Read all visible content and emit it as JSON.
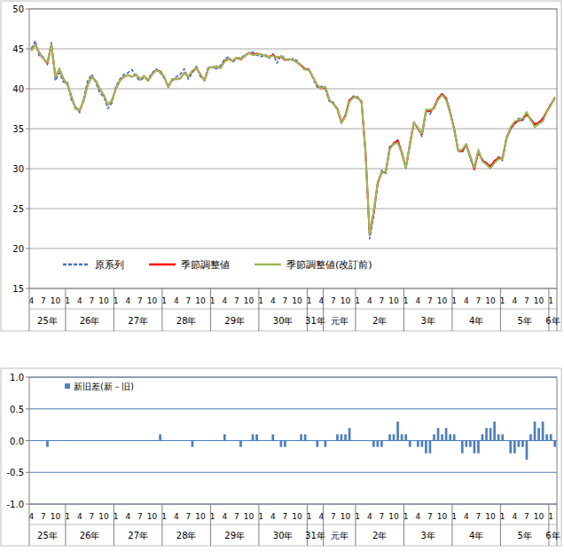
{
  "chart_data": [
    {
      "type": "line",
      "categories": [
        "4",
        null,
        null,
        "7",
        null,
        null,
        "10",
        null,
        null,
        "1",
        null,
        null,
        "4",
        null,
        null,
        "7",
        null,
        null,
        "10",
        null,
        null,
        "1",
        null,
        null,
        "4",
        null,
        null,
        "7",
        null,
        null,
        "10",
        null,
        null,
        "1",
        null,
        null,
        "4",
        null,
        null,
        "7",
        null,
        null,
        "10",
        null,
        null,
        "1",
        null,
        null,
        "4",
        null,
        null,
        "7",
        null,
        null,
        "10",
        null,
        null,
        "1",
        null,
        null,
        "4",
        null,
        null,
        "7",
        null,
        null,
        "10",
        null,
        null,
        "1",
        null,
        null,
        "4",
        null,
        null,
        "7",
        null,
        null,
        "10",
        null,
        null,
        "1",
        null,
        null,
        "4",
        null,
        null,
        "7",
        null,
        null,
        "10",
        null,
        null,
        "1",
        null,
        null,
        "4",
        null,
        null,
        "7",
        null,
        null,
        "10",
        null,
        null,
        "1",
        null,
        null,
        "4",
        null,
        null,
        "7",
        null,
        null,
        "10",
        null,
        null,
        "1",
        null,
        null,
        "4",
        null,
        null,
        "7",
        null,
        null,
        "10",
        null,
        null,
        "1",
        null
      ],
      "x_groups": [
        {
          "label": "25年",
          "span": 9
        },
        {
          "label": "26年",
          "span": 12
        },
        {
          "label": "27年",
          "span": 12
        },
        {
          "label": "28年",
          "span": 12
        },
        {
          "label": "29年",
          "span": 12
        },
        {
          "label": "30年",
          "span": 12
        },
        {
          "label": "31年",
          "span": 4
        },
        {
          "label": "元年",
          "span": 8
        },
        {
          "label": "2年",
          "span": 12
        },
        {
          "label": "3年",
          "span": 12
        },
        {
          "label": "4年",
          "span": 12
        },
        {
          "label": "5年",
          "span": 12
        },
        {
          "label": "6年",
          "span": 2
        }
      ],
      "series": [
        {
          "name": "原系列",
          "color": "#4472c4",
          "line_style": "dashed",
          "values": [
            45.0,
            46.0,
            44.0,
            44.0,
            43.0,
            45.8,
            41.0,
            42.0,
            40.8,
            40.8,
            38.5,
            37.8,
            37.0,
            38.8,
            41.0,
            41.8,
            40.8,
            39.5,
            39.0,
            37.5,
            38.2,
            40.3,
            41.2,
            41.8,
            42.0,
            42.4,
            41.5,
            41.0,
            41.4,
            41.2,
            42.0,
            42.5,
            42.0,
            41.3,
            40.4,
            41.0,
            41.5,
            41.8,
            42.5,
            41.2,
            42.0,
            42.8,
            41.5,
            41.2,
            42.8,
            42.6,
            42.5,
            42.9,
            43.7,
            44.0,
            43.3,
            43.8,
            43.9,
            44.2,
            44.4,
            44.6,
            44.2,
            44.0,
            44.3,
            43.8,
            44.4,
            43.2,
            44.2,
            43.8,
            43.5,
            43.8,
            43.5,
            42.8,
            42.3,
            42.5,
            41.2,
            40.2,
            40.3,
            40.0,
            38.4,
            38.3,
            37.3,
            35.6,
            36.8,
            38.5,
            39.1,
            38.8,
            38.5,
            31.8,
            21.2,
            24.0,
            28.0,
            29.8,
            29.4,
            32.8,
            33.0,
            33.6,
            31.8,
            30.0,
            33.2,
            35.6,
            35.2,
            34.0,
            37.5,
            36.8,
            37.8,
            38.6,
            39.5,
            38.6,
            37.2,
            34.8,
            32.4,
            32.0,
            33.2,
            31.2,
            30.1,
            32.0,
            31.2,
            30.5,
            30.4,
            30.8,
            31.5,
            31.0,
            34.0,
            35.2,
            35.5,
            36.3,
            36.0,
            37.0,
            36.0,
            35.7,
            35.6,
            36.4,
            37.0,
            38.2,
            38.7
          ]
        },
        {
          "name": "季節調整値",
          "color": "#ff0000",
          "line_style": "solid",
          "values": [
            44.8,
            45.5,
            44.5,
            43.8,
            43.2,
            45.5,
            41.5,
            42.5,
            41.2,
            40.5,
            39.0,
            37.5,
            37.3,
            38.5,
            40.5,
            41.5,
            41.0,
            40.0,
            39.2,
            38.0,
            38.5,
            40.0,
            41.0,
            41.5,
            41.7,
            41.5,
            41.8,
            41.2,
            41.6,
            41.0,
            41.8,
            42.3,
            42.2,
            41.5,
            40.2,
            41.2,
            41.2,
            41.3,
            42.0,
            41.5,
            42.2,
            42.6,
            41.8,
            41.0,
            42.6,
            42.7,
            42.8,
            42.6,
            43.5,
            43.7,
            43.5,
            43.9,
            43.7,
            44.1,
            44.5,
            44.3,
            44.4,
            44.3,
            44.1,
            44.0,
            44.2,
            43.9,
            44.0,
            43.6,
            43.7,
            43.6,
            43.3,
            42.9,
            42.5,
            42.3,
            41.4,
            40.4,
            40.0,
            40.2,
            38.6,
            38.1,
            37.5,
            35.8,
            36.6,
            38.6,
            38.9,
            39.0,
            38.3,
            32.0,
            21.8,
            24.5,
            28.2,
            29.5,
            29.6,
            32.5,
            33.2,
            33.5,
            32.0,
            30.1,
            33.0,
            35.8,
            35.0,
            34.3,
            37.2,
            37.2,
            37.6,
            38.8,
            39.3,
            38.8,
            37.0,
            35.0,
            32.2,
            32.2,
            33.0,
            31.5,
            29.9,
            32.2,
            31.0,
            30.7,
            30.2,
            31.0,
            31.3,
            31.3,
            33.8,
            35.0,
            35.7,
            36.0,
            36.2,
            36.8,
            36.2,
            35.5,
            35.8,
            36.2,
            37.2,
            38.0,
            38.9
          ]
        },
        {
          "name": "季節調整値(改訂前)",
          "color": "#9bbb59",
          "line_style": "solid",
          "values": [
            44.8,
            45.5,
            44.5,
            43.8,
            43.3,
            45.5,
            41.5,
            42.5,
            41.2,
            40.5,
            39.0,
            37.5,
            37.3,
            38.5,
            40.5,
            41.5,
            41.0,
            40.0,
            39.2,
            38.0,
            38.5,
            40.0,
            41.0,
            41.5,
            41.7,
            41.5,
            41.8,
            41.2,
            41.6,
            41.0,
            41.8,
            42.3,
            42.1,
            41.5,
            40.2,
            41.2,
            41.2,
            41.3,
            42.0,
            41.5,
            42.3,
            42.6,
            41.8,
            41.0,
            42.6,
            42.7,
            42.8,
            42.6,
            43.4,
            43.7,
            43.5,
            43.9,
            43.8,
            44.1,
            44.5,
            44.2,
            44.3,
            44.3,
            44.1,
            44.0,
            44.1,
            43.9,
            44.1,
            43.7,
            43.7,
            43.6,
            43.3,
            42.8,
            42.4,
            42.3,
            41.4,
            40.5,
            40.0,
            40.3,
            38.6,
            38.1,
            37.4,
            35.7,
            36.5,
            38.4,
            38.9,
            39.0,
            38.3,
            32.0,
            21.8,
            24.6,
            28.3,
            29.6,
            29.6,
            32.4,
            33.1,
            33.2,
            31.9,
            30.0,
            33.1,
            35.8,
            35.1,
            34.4,
            37.4,
            37.4,
            37.5,
            38.6,
            39.2,
            38.6,
            36.9,
            34.9,
            32.2,
            32.4,
            33.1,
            31.6,
            30.1,
            32.4,
            30.9,
            30.5,
            30.0,
            30.7,
            31.2,
            31.2,
            33.8,
            35.2,
            35.9,
            36.1,
            36.3,
            37.1,
            36.1,
            35.2,
            35.6,
            35.9,
            37.1,
            37.9,
            39.0
          ]
        }
      ],
      "ylim": [
        15,
        50
      ],
      "yticks": [
        15,
        20,
        25,
        30,
        35,
        40,
        45,
        50
      ],
      "grid": true,
      "legend": "lower left"
    },
    {
      "type": "bar",
      "categories": [
        "4",
        null,
        null,
        "7",
        null,
        null,
        "10",
        null,
        null,
        "1",
        null,
        null,
        "4",
        null,
        null,
        "7",
        null,
        null,
        "10",
        null,
        null,
        "1",
        null,
        null,
        "4",
        null,
        null,
        "7",
        null,
        null,
        "10",
        null,
        null,
        "1",
        null,
        null,
        "4",
        null,
        null,
        "7",
        null,
        null,
        "10",
        null,
        null,
        "1",
        null,
        null,
        "4",
        null,
        null,
        "7",
        null,
        null,
        "10",
        null,
        null,
        "1",
        null,
        null,
        "4",
        null,
        null,
        "7",
        null,
        null,
        "10",
        null,
        null,
        "1",
        null,
        null,
        "4",
        null,
        null,
        "7",
        null,
        null,
        "10",
        null,
        null,
        "1",
        null,
        null,
        "4",
        null,
        null,
        "7",
        null,
        null,
        "10",
        null,
        null,
        "1",
        null,
        null,
        "4",
        null,
        null,
        "7",
        null,
        null,
        "10",
        null,
        null,
        "1",
        null,
        null,
        "4",
        null,
        null,
        "7",
        null,
        null,
        "10",
        null,
        null,
        "1",
        null,
        null,
        "4",
        null,
        null,
        "7",
        null,
        null,
        "10",
        null,
        null,
        "1",
        null
      ],
      "x_groups": [
        {
          "label": "25年",
          "span": 9
        },
        {
          "label": "26年",
          "span": 12
        },
        {
          "label": "27年",
          "span": 12
        },
        {
          "label": "28年",
          "span": 12
        },
        {
          "label": "29年",
          "span": 12
        },
        {
          "label": "30年",
          "span": 12
        },
        {
          "label": "31年",
          "span": 4
        },
        {
          "label": "元年",
          "span": 8
        },
        {
          "label": "2年",
          "span": 12
        },
        {
          "label": "3年",
          "span": 12
        },
        {
          "label": "4年",
          "span": 12
        },
        {
          "label": "5年",
          "span": 12
        },
        {
          "label": "6年",
          "span": 2
        }
      ],
      "series": [
        {
          "name": "新旧差(新－旧)",
          "color": "#4f81bd",
          "values": [
            0,
            0,
            0,
            0,
            -0.1,
            0,
            0,
            0,
            0,
            0,
            0,
            0,
            0,
            0,
            0,
            0,
            0,
            0,
            0,
            0,
            0,
            0,
            0,
            0,
            0,
            0,
            0,
            0,
            0,
            0,
            0,
            0,
            0.1,
            0,
            0,
            0,
            0,
            0,
            0,
            0,
            -0.1,
            0,
            0,
            0,
            0,
            0,
            0,
            0,
            0.1,
            0,
            0,
            0,
            -0.1,
            0,
            0,
            0.1,
            0.1,
            0,
            0,
            0,
            0.1,
            0,
            -0.1,
            -0.1,
            0,
            0,
            0,
            0.1,
            0.1,
            0,
            0,
            -0.1,
            0,
            -0.1,
            0,
            0,
            0.1,
            0.1,
            0.1,
            0.2,
            0,
            0,
            0,
            0,
            0,
            -0.1,
            -0.1,
            -0.1,
            0,
            0.1,
            0.1,
            0.3,
            0.1,
            0.1,
            -0.1,
            0,
            -0.1,
            -0.1,
            -0.2,
            -0.2,
            0.1,
            0.2,
            0.1,
            0.2,
            0.1,
            0.1,
            0,
            -0.2,
            -0.1,
            -0.1,
            -0.2,
            -0.2,
            0.1,
            0.2,
            0.2,
            0.3,
            0.1,
            0.1,
            0,
            -0.2,
            -0.2,
            -0.1,
            -0.1,
            -0.3,
            0.1,
            0.3,
            0.2,
            0.3,
            0.1,
            0.1,
            -0.1
          ]
        }
      ],
      "ylim": [
        -1,
        1
      ],
      "yticks": [
        {
          "value": -1,
          "label": "-1.0"
        },
        -0.5,
        {
          "value": 0,
          "label": "0.0"
        },
        0.5,
        {
          "value": 1,
          "label": "1.0"
        }
      ],
      "grid": true,
      "legend": "upper left"
    }
  ]
}
